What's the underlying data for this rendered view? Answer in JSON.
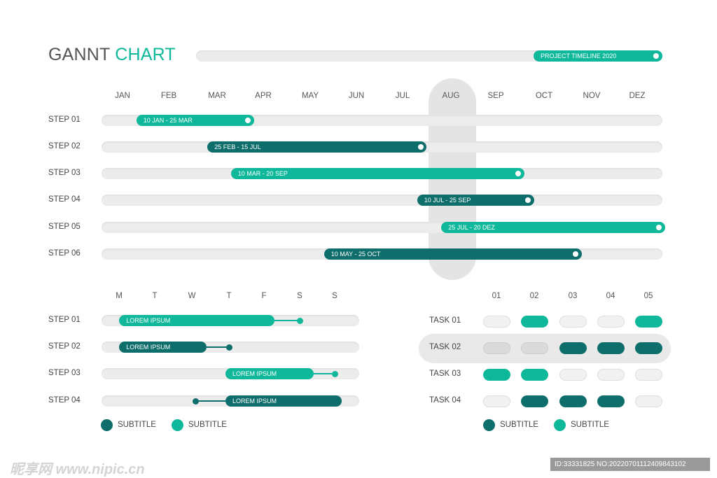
{
  "title": {
    "word1": "GANNT",
    "word2": "CHART"
  },
  "timeline_label": "PROJECT TIMELINE 2020",
  "colors": {
    "teal": "#0fb89a",
    "dark": "#0e6e6b",
    "track": "#ececec",
    "highlight": "#e4e4e4"
  },
  "chart_data": [
    {
      "type": "gantt",
      "months": [
        "JAN",
        "FEB",
        "MAR",
        "APR",
        "MAY",
        "JUN",
        "JUL",
        "AUG",
        "SEP",
        "OCT",
        "NOV",
        "DEZ"
      ],
      "highlight_month": "AUG",
      "tasks": [
        {
          "label": "STEP 01",
          "range": "10 JAN - 25 MAR",
          "start_month": 0.3,
          "end_month": 2.8,
          "color": "teal"
        },
        {
          "label": "STEP 02",
          "range": "25 FEB - 15 JUL",
          "start_month": 1.8,
          "end_month": 6.5,
          "color": "dark"
        },
        {
          "label": "STEP 03",
          "range": "10 MAR - 20 SEP",
          "start_month": 2.3,
          "end_month": 8.6,
          "color": "teal"
        },
        {
          "label": "STEP 04",
          "range": "10 JUL - 25 SEP",
          "start_month": 6.3,
          "end_month": 8.8,
          "color": "dark"
        },
        {
          "label": "STEP 05",
          "range": "25 JUL - 20 DEZ",
          "start_month": 6.8,
          "end_month": 11.6,
          "color": "teal"
        },
        {
          "label": "STEP 06",
          "range": "10 MAY - 25 OCT",
          "start_month": 4.3,
          "end_month": 9.8,
          "color": "dark"
        }
      ]
    },
    {
      "type": "gantt",
      "days": [
        "M",
        "T",
        "W",
        "T",
        "F",
        "S",
        "S"
      ],
      "tasks": [
        {
          "label": "STEP 01",
          "text": "LOREM IPSUM",
          "bar_start": 0.2,
          "bar_end": 4.3,
          "dot": 5.0,
          "dot_side": "right",
          "color": "teal"
        },
        {
          "label": "STEP 02",
          "text": "LOREM IPSUM",
          "bar_start": 0.2,
          "bar_end": 2.4,
          "dot": 3.0,
          "dot_side": "right",
          "color": "dark"
        },
        {
          "label": "STEP 03",
          "text": "LOREM IPSUM",
          "bar_start": 3.1,
          "bar_end": 5.4,
          "dot": 6.0,
          "dot_side": "right",
          "color": "teal"
        },
        {
          "label": "STEP 04",
          "text": "LOREM IPSUM",
          "bar_start": 3.1,
          "bar_end": 6.2,
          "dot": 2.1,
          "dot_side": "left",
          "color": "dark"
        }
      ],
      "legend": [
        {
          "label": "SUBTITLE",
          "color": "dark"
        },
        {
          "label": "SUBTITLE",
          "color": "teal"
        }
      ]
    },
    {
      "type": "table",
      "columns": [
        "01",
        "02",
        "03",
        "04",
        "05"
      ],
      "highlight_row": "TASK 02",
      "rows": [
        {
          "label": "TASK 01",
          "cells": [
            "empty",
            "teal",
            "empty",
            "empty",
            "teal"
          ]
        },
        {
          "label": "TASK 02",
          "cells": [
            "grey",
            "grey",
            "dark",
            "dark",
            "dark"
          ]
        },
        {
          "label": "TASK 03",
          "cells": [
            "teal",
            "teal",
            "empty",
            "empty",
            "empty"
          ]
        },
        {
          "label": "TASK 04",
          "cells": [
            "empty",
            "dark",
            "dark",
            "dark",
            "empty"
          ]
        }
      ],
      "legend": [
        {
          "label": "SUBTITLE",
          "color": "dark"
        },
        {
          "label": "SUBTITLE",
          "color": "teal"
        }
      ]
    }
  ],
  "watermark": {
    "left": "昵享网 www.nipic.cn",
    "right": "ID:33331825 NO:20220701112409843102"
  }
}
